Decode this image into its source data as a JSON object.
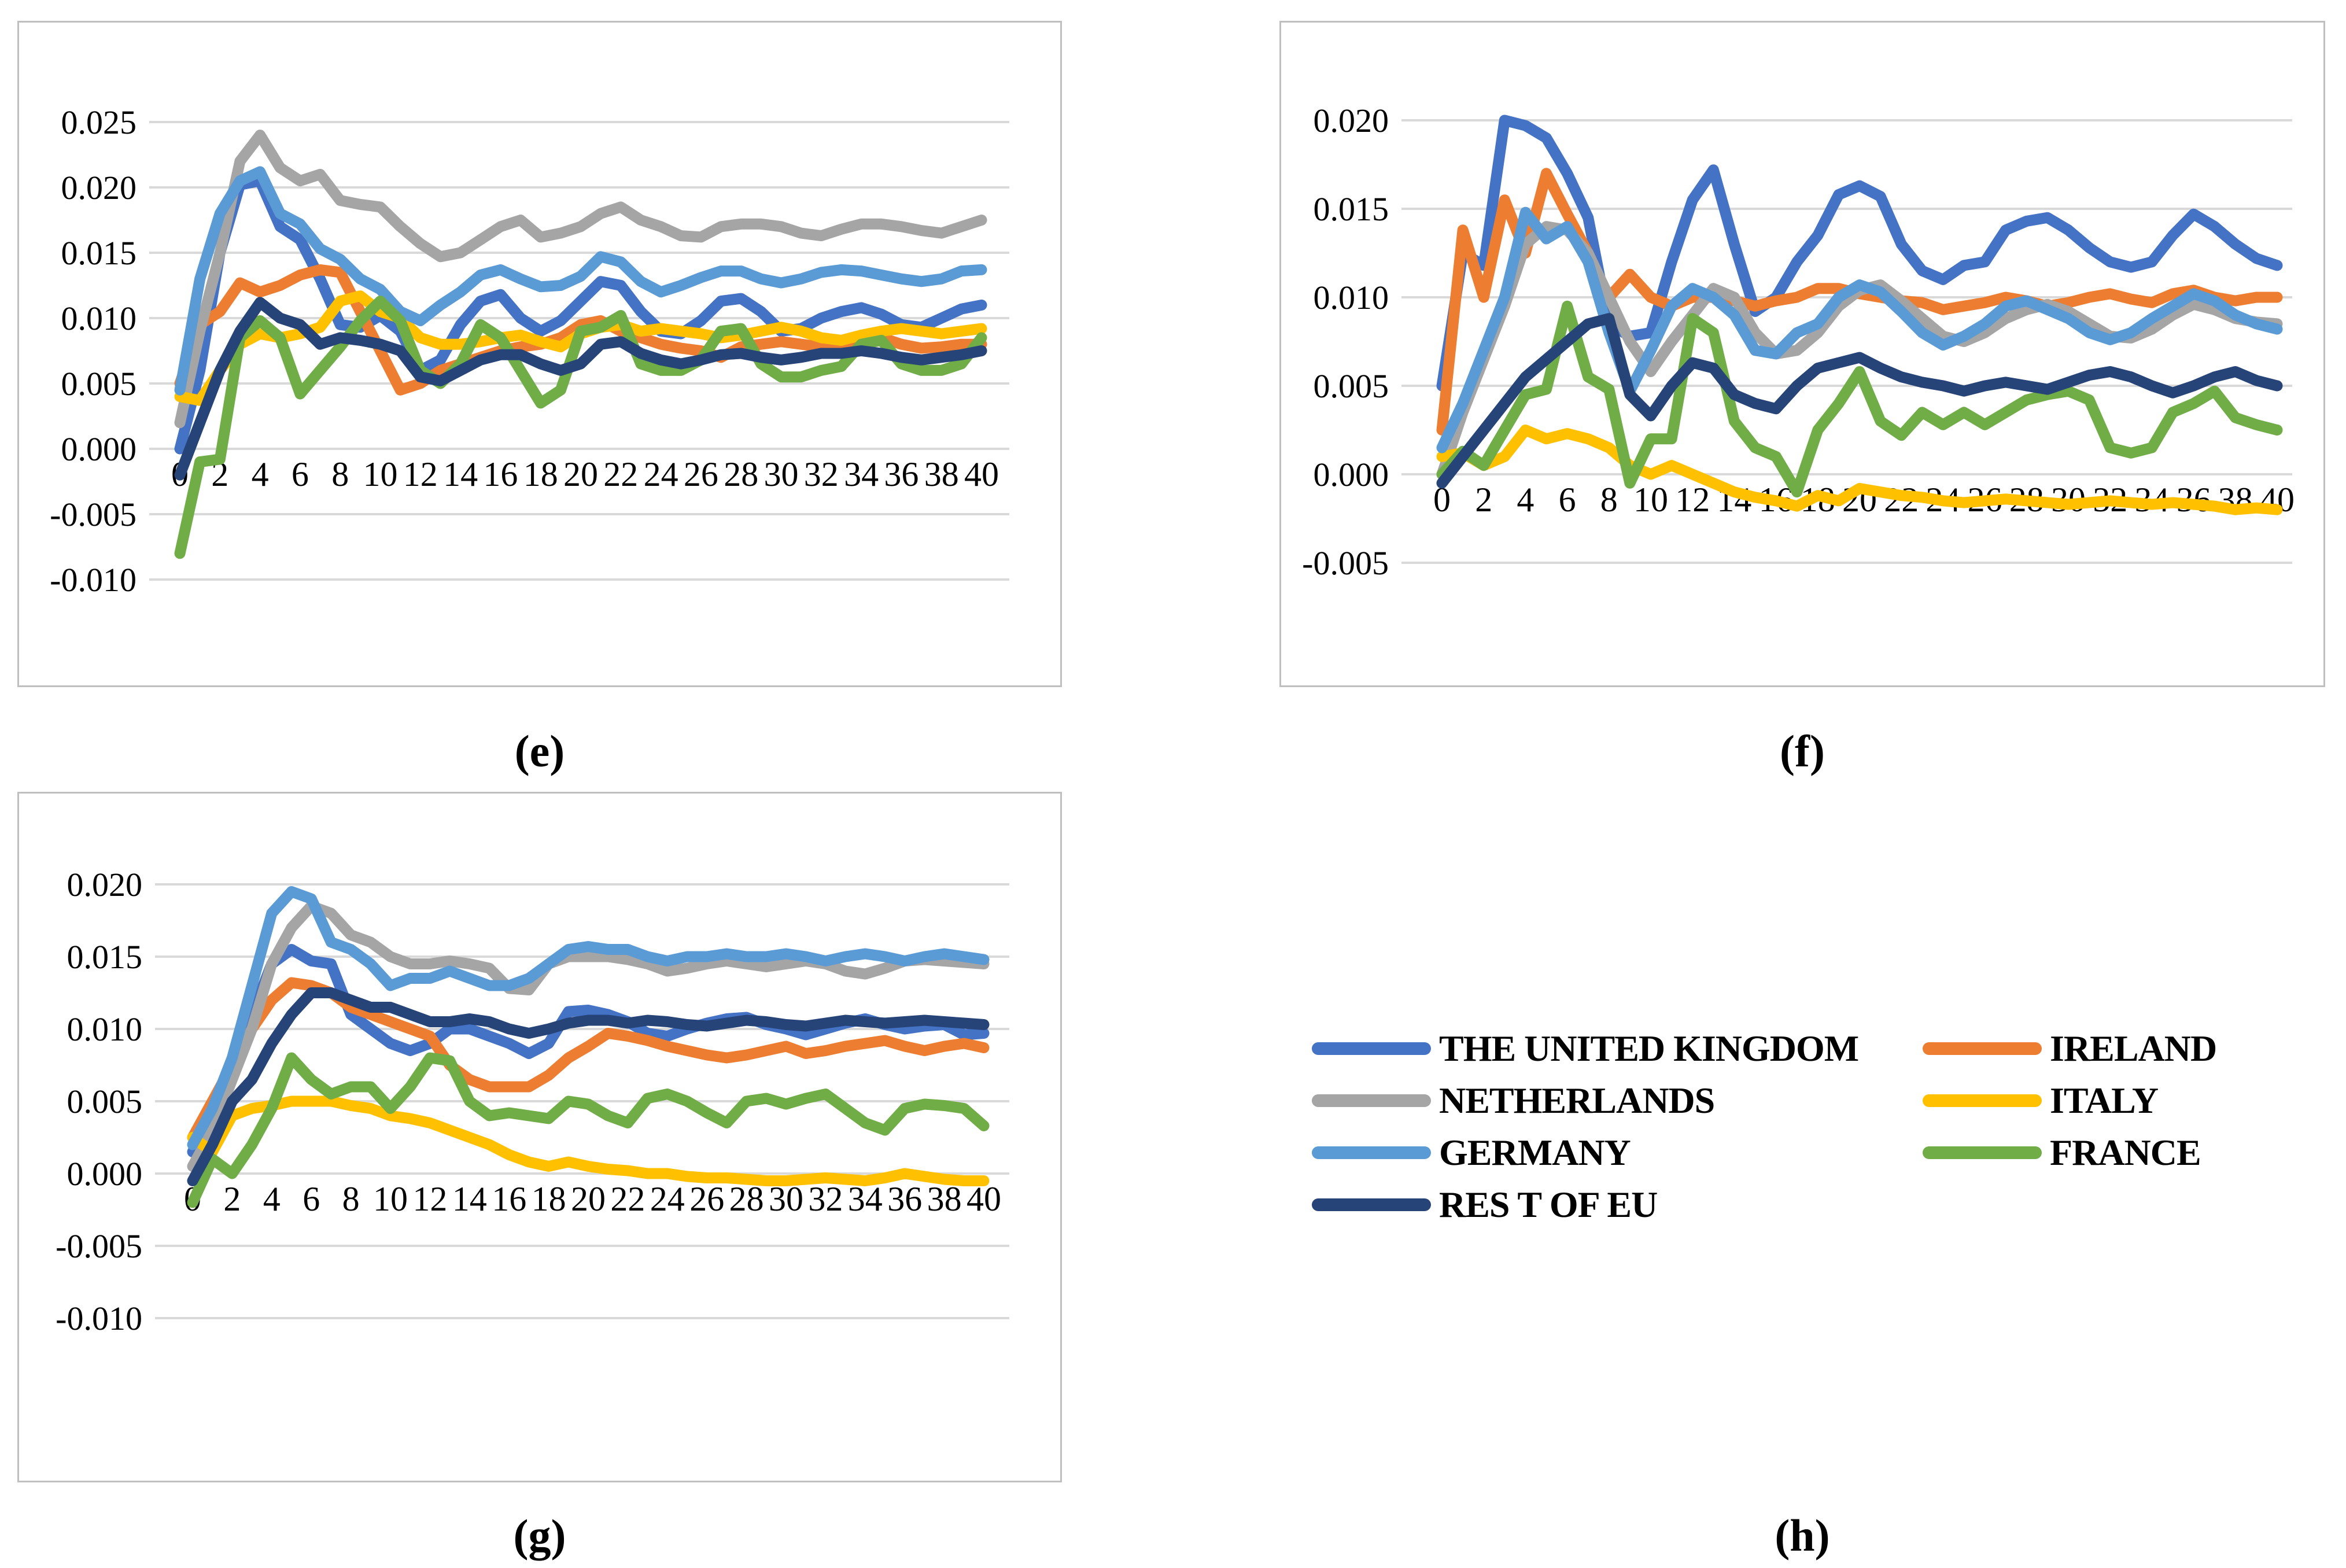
{
  "series_meta": [
    {
      "id": "uk",
      "label": "THE UNITED KINGDOM",
      "color": "#4472C4"
    },
    {
      "id": "ireland",
      "label": "IRELAND",
      "color": "#ED7D31"
    },
    {
      "id": "netherlands",
      "label": "NETHERLANDS",
      "color": "#A5A5A5"
    },
    {
      "id": "italy",
      "label": "ITALY",
      "color": "#FFC000"
    },
    {
      "id": "germany",
      "label": "GERMANY",
      "color": "#5B9BD5"
    },
    {
      "id": "france",
      "label": "FRANCE",
      "color": "#70AD47"
    },
    {
      "id": "resteu",
      "label": "RES T OF EU",
      "color": "#264478"
    }
  ],
  "legend": {
    "caption": "(h)",
    "rows": [
      [
        "uk",
        "ireland"
      ],
      [
        "netherlands",
        "italy"
      ],
      [
        "germany",
        "france"
      ],
      [
        "resteu"
      ]
    ]
  },
  "styles": {
    "gridline_color": "#d9d9d9",
    "panel_border_color": "#bfbfbf",
    "line_width": 19
  },
  "chart_data": [
    {
      "id": "e",
      "caption": "(e)",
      "type": "line",
      "x_range": [
        0,
        40
      ],
      "x_interval": 1,
      "xticks": [
        0,
        2,
        4,
        6,
        8,
        10,
        12,
        14,
        16,
        18,
        20,
        22,
        24,
        26,
        28,
        30,
        32,
        34,
        36,
        38,
        40
      ],
      "yticks": [
        0.025,
        0.02,
        0.015,
        0.01,
        0.005,
        0.0,
        -0.005,
        -0.01
      ],
      "ylim": [
        -0.01,
        0.025
      ],
      "grid": true,
      "series": {
        "uk": [
          0.0,
          0.006,
          0.015,
          0.0202,
          0.0205,
          0.017,
          0.016,
          0.013,
          0.0095,
          0.0093,
          0.0102,
          0.009,
          0.006,
          0.0068,
          0.0095,
          0.0113,
          0.0118,
          0.01,
          0.009,
          0.0098,
          0.0113,
          0.0128,
          0.0125,
          0.0105,
          0.009,
          0.0088,
          0.0098,
          0.0113,
          0.0115,
          0.0105,
          0.009,
          0.0092,
          0.01,
          0.0105,
          0.0108,
          0.0103,
          0.0095,
          0.0093,
          0.01,
          0.0107,
          0.011
        ],
        "ireland": [
          0.005,
          0.0095,
          0.0105,
          0.0127,
          0.012,
          0.0125,
          0.0133,
          0.0137,
          0.0135,
          0.0105,
          0.0075,
          0.0045,
          0.005,
          0.006,
          0.0065,
          0.007,
          0.0075,
          0.0078,
          0.008,
          0.0085,
          0.0095,
          0.0098,
          0.009,
          0.0085,
          0.008,
          0.0077,
          0.0075,
          0.007,
          0.0078,
          0.008,
          0.0082,
          0.008,
          0.0078,
          0.008,
          0.0082,
          0.0085,
          0.008,
          0.0077,
          0.0078,
          0.008,
          0.008
        ],
        "netherlands": [
          0.002,
          0.009,
          0.015,
          0.022,
          0.024,
          0.0215,
          0.0205,
          0.021,
          0.019,
          0.0187,
          0.0185,
          0.017,
          0.0157,
          0.0147,
          0.015,
          0.016,
          0.017,
          0.0175,
          0.0162,
          0.0165,
          0.017,
          0.018,
          0.0185,
          0.0175,
          0.017,
          0.0163,
          0.0162,
          0.017,
          0.0172,
          0.0172,
          0.017,
          0.0165,
          0.0163,
          0.0168,
          0.0172,
          0.0172,
          0.017,
          0.0167,
          0.0165,
          0.017,
          0.0175
        ],
        "italy": [
          0.004,
          0.0037,
          0.006,
          0.008,
          0.0088,
          0.0085,
          0.0088,
          0.0093,
          0.0113,
          0.0117,
          0.0105,
          0.01,
          0.0085,
          0.008,
          0.008,
          0.0082,
          0.0085,
          0.0087,
          0.0082,
          0.0078,
          0.0088,
          0.0093,
          0.0095,
          0.009,
          0.0092,
          0.009,
          0.0088,
          0.0085,
          0.0087,
          0.009,
          0.0093,
          0.009,
          0.0085,
          0.0083,
          0.0087,
          0.009,
          0.0092,
          0.009,
          0.0088,
          0.009,
          0.0092
        ],
        "germany": [
          0.0045,
          0.013,
          0.018,
          0.0205,
          0.0212,
          0.018,
          0.0172,
          0.0153,
          0.0145,
          0.013,
          0.0122,
          0.0105,
          0.0098,
          0.011,
          0.012,
          0.0133,
          0.0137,
          0.013,
          0.0124,
          0.0125,
          0.0132,
          0.0147,
          0.0143,
          0.0128,
          0.012,
          0.0125,
          0.0131,
          0.0136,
          0.0136,
          0.013,
          0.0127,
          0.013,
          0.0135,
          0.0137,
          0.0136,
          0.0133,
          0.013,
          0.0128,
          0.013,
          0.0136,
          0.0137
        ],
        "france": [
          -0.008,
          -0.001,
          -0.0008,
          0.0085,
          0.0098,
          0.0085,
          0.0042,
          0.006,
          0.0078,
          0.0098,
          0.0113,
          0.0098,
          0.006,
          0.005,
          0.0065,
          0.0095,
          0.0085,
          0.006,
          0.0035,
          0.0045,
          0.009,
          0.0093,
          0.0102,
          0.0065,
          0.006,
          0.006,
          0.0068,
          0.009,
          0.0092,
          0.0065,
          0.0055,
          0.0055,
          0.006,
          0.0063,
          0.008,
          0.0083,
          0.0065,
          0.006,
          0.006,
          0.0065,
          0.0085
        ],
        "resteu": [
          -0.002,
          0.002,
          0.006,
          0.009,
          0.0112,
          0.01,
          0.0095,
          0.008,
          0.0085,
          0.0083,
          0.008,
          0.0075,
          0.0055,
          0.0052,
          0.006,
          0.0068,
          0.0072,
          0.0072,
          0.0065,
          0.006,
          0.0065,
          0.008,
          0.0082,
          0.0073,
          0.0068,
          0.0065,
          0.0068,
          0.0072,
          0.0073,
          0.007,
          0.0068,
          0.007,
          0.0073,
          0.0073,
          0.0075,
          0.0073,
          0.007,
          0.0068,
          0.007,
          0.0072,
          0.0075
        ]
      }
    },
    {
      "id": "f",
      "caption": "(f)",
      "type": "line",
      "x_range": [
        0,
        40
      ],
      "x_interval": 1,
      "xticks": [
        0,
        2,
        4,
        6,
        8,
        10,
        12,
        14,
        16,
        18,
        20,
        22,
        24,
        26,
        28,
        30,
        32,
        34,
        36,
        38,
        40
      ],
      "yticks": [
        0.02,
        0.015,
        0.01,
        0.005,
        0.0,
        -0.005
      ],
      "ylim": [
        -0.005,
        0.02
      ],
      "grid": true,
      "series": {
        "uk": [
          0.005,
          0.0125,
          0.0118,
          0.02,
          0.0197,
          0.019,
          0.017,
          0.0145,
          0.0085,
          0.0078,
          0.008,
          0.012,
          0.0155,
          0.0172,
          0.013,
          0.0092,
          0.01,
          0.012,
          0.0135,
          0.0158,
          0.0163,
          0.0157,
          0.013,
          0.0115,
          0.011,
          0.0118,
          0.012,
          0.0138,
          0.0143,
          0.0145,
          0.0138,
          0.0128,
          0.012,
          0.0117,
          0.012,
          0.0135,
          0.0147,
          0.014,
          0.013,
          0.0122,
          0.0118
        ],
        "ireland": [
          0.0025,
          0.0138,
          0.01,
          0.0155,
          0.0125,
          0.017,
          0.0147,
          0.0125,
          0.01,
          0.0113,
          0.01,
          0.0095,
          0.01,
          0.01,
          0.0098,
          0.0095,
          0.0098,
          0.01,
          0.0105,
          0.0105,
          0.0102,
          0.01,
          0.0098,
          0.0097,
          0.0093,
          0.0095,
          0.0097,
          0.01,
          0.0098,
          0.0095,
          0.0097,
          0.01,
          0.0102,
          0.0099,
          0.0097,
          0.0102,
          0.0104,
          0.01,
          0.0098,
          0.01,
          0.01
        ],
        "netherlands": [
          0.0,
          0.0035,
          0.0065,
          0.0095,
          0.013,
          0.014,
          0.0138,
          0.0125,
          0.01,
          0.0075,
          0.0058,
          0.0075,
          0.009,
          0.0105,
          0.01,
          0.008,
          0.0068,
          0.007,
          0.008,
          0.0095,
          0.0104,
          0.0107,
          0.0098,
          0.0088,
          0.0078,
          0.0075,
          0.008,
          0.0088,
          0.0093,
          0.0096,
          0.0092,
          0.0085,
          0.0078,
          0.0077,
          0.0082,
          0.009,
          0.0096,
          0.0093,
          0.0088,
          0.0086,
          0.0085
        ],
        "italy": [
          0.001,
          0.0012,
          0.0005,
          0.001,
          0.0025,
          0.002,
          0.0023,
          0.002,
          0.0015,
          0.0005,
          0.0,
          0.0005,
          0.0,
          -0.0005,
          -0.001,
          -0.0013,
          -0.0015,
          -0.0018,
          -0.0012,
          -0.0015,
          -0.0008,
          -0.001,
          -0.0012,
          -0.0013,
          -0.0015,
          -0.0016,
          -0.0015,
          -0.0014,
          -0.0015,
          -0.0016,
          -0.0017,
          -0.0016,
          -0.0015,
          -0.0016,
          -0.0017,
          -0.0016,
          -0.0017,
          -0.0018,
          -0.002,
          -0.0019,
          -0.002
        ],
        "germany": [
          0.0015,
          0.004,
          0.007,
          0.01,
          0.0148,
          0.0133,
          0.014,
          0.012,
          0.008,
          0.0047,
          0.007,
          0.0095,
          0.0105,
          0.01,
          0.009,
          0.007,
          0.0068,
          0.008,
          0.0085,
          0.01,
          0.0107,
          0.0103,
          0.0092,
          0.008,
          0.0073,
          0.0078,
          0.0085,
          0.0095,
          0.0098,
          0.0093,
          0.0088,
          0.008,
          0.0076,
          0.008,
          0.0088,
          0.0095,
          0.0102,
          0.0098,
          0.009,
          0.0085,
          0.0082
        ],
        "france": [
          0.0,
          0.0013,
          0.0005,
          0.0025,
          0.0045,
          0.0048,
          0.0095,
          0.0055,
          0.0048,
          -0.0005,
          0.002,
          0.002,
          0.0088,
          0.008,
          0.003,
          0.0015,
          0.001,
          -0.001,
          0.0025,
          0.004,
          0.0058,
          0.003,
          0.0022,
          0.0035,
          0.0028,
          0.0035,
          0.0028,
          0.0035,
          0.0042,
          0.0045,
          0.0047,
          0.0042,
          0.0015,
          0.0012,
          0.0015,
          0.0035,
          0.004,
          0.0047,
          0.0032,
          0.0028,
          0.0025
        ],
        "resteu": [
          -0.0005,
          0.001,
          0.0025,
          0.004,
          0.0055,
          0.0065,
          0.0075,
          0.0085,
          0.0088,
          0.0045,
          0.0033,
          0.005,
          0.0063,
          0.006,
          0.0045,
          0.004,
          0.0037,
          0.005,
          0.006,
          0.0063,
          0.0066,
          0.006,
          0.0055,
          0.0052,
          0.005,
          0.0047,
          0.005,
          0.0052,
          0.005,
          0.0048,
          0.0052,
          0.0056,
          0.0058,
          0.0055,
          0.005,
          0.0046,
          0.005,
          0.0055,
          0.0058,
          0.0053,
          0.005
        ]
      }
    },
    {
      "id": "g",
      "caption": "(g)",
      "type": "line",
      "x_range": [
        0,
        40
      ],
      "x_interval": 1,
      "xticks": [
        0,
        2,
        4,
        6,
        8,
        10,
        12,
        14,
        16,
        18,
        20,
        22,
        24,
        26,
        28,
        30,
        32,
        34,
        36,
        38,
        40
      ],
      "yticks": [
        0.02,
        0.015,
        0.01,
        0.005,
        0.0,
        -0.005,
        -0.01
      ],
      "ylim": [
        -0.01,
        0.02
      ],
      "grid": true,
      "series": {
        "uk": [
          0.0015,
          0.004,
          0.0075,
          0.011,
          0.0145,
          0.0155,
          0.0147,
          0.0145,
          0.011,
          0.01,
          0.009,
          0.0085,
          0.009,
          0.01,
          0.01,
          0.0095,
          0.009,
          0.0083,
          0.009,
          0.0112,
          0.0113,
          0.011,
          0.0105,
          0.0097,
          0.0095,
          0.01,
          0.0104,
          0.0107,
          0.0108,
          0.0103,
          0.01,
          0.0096,
          0.01,
          0.0104,
          0.0107,
          0.0103,
          0.01,
          0.0102,
          0.0103,
          0.0096,
          0.0097
        ],
        "ireland": [
          0.0025,
          0.005,
          0.0075,
          0.01,
          0.012,
          0.0132,
          0.013,
          0.0125,
          0.0115,
          0.011,
          0.0105,
          0.01,
          0.0095,
          0.0075,
          0.0065,
          0.006,
          0.006,
          0.006,
          0.0068,
          0.008,
          0.0088,
          0.0097,
          0.0095,
          0.0092,
          0.0088,
          0.0085,
          0.0082,
          0.008,
          0.0082,
          0.0085,
          0.0088,
          0.0083,
          0.0085,
          0.0088,
          0.009,
          0.0092,
          0.0088,
          0.0085,
          0.0088,
          0.009,
          0.0087
        ],
        "netherlands": [
          0.0005,
          0.003,
          0.0065,
          0.01,
          0.0145,
          0.017,
          0.0185,
          0.018,
          0.0165,
          0.016,
          0.015,
          0.0145,
          0.0145,
          0.0147,
          0.0145,
          0.0142,
          0.0128,
          0.0127,
          0.0145,
          0.015,
          0.015,
          0.015,
          0.0148,
          0.0145,
          0.014,
          0.0142,
          0.0145,
          0.0147,
          0.0145,
          0.0143,
          0.0145,
          0.0147,
          0.0145,
          0.014,
          0.0138,
          0.0142,
          0.0147,
          0.0148,
          0.0147,
          0.0146,
          0.0145
        ],
        "italy": [
          0.0025,
          0.0015,
          0.004,
          0.0045,
          0.0047,
          0.005,
          0.005,
          0.005,
          0.0047,
          0.0045,
          0.004,
          0.0038,
          0.0035,
          0.003,
          0.0025,
          0.002,
          0.0013,
          0.0008,
          0.0005,
          0.0008,
          0.0005,
          0.0003,
          0.0002,
          0.0,
          0.0,
          -0.0002,
          -0.0003,
          -0.0003,
          -0.0004,
          -0.0005,
          -0.0005,
          -0.0004,
          -0.0003,
          -0.0004,
          -0.0005,
          -0.0003,
          0.0,
          -0.0002,
          -0.0004,
          -0.0005,
          -0.0005
        ],
        "germany": [
          0.002,
          0.0045,
          0.008,
          0.013,
          0.018,
          0.0195,
          0.019,
          0.016,
          0.0155,
          0.0145,
          0.013,
          0.0135,
          0.0135,
          0.014,
          0.0135,
          0.013,
          0.013,
          0.0135,
          0.0145,
          0.0155,
          0.0157,
          0.0155,
          0.0155,
          0.015,
          0.0147,
          0.015,
          0.015,
          0.0152,
          0.015,
          0.015,
          0.0152,
          0.015,
          0.0147,
          0.015,
          0.0152,
          0.015,
          0.0147,
          0.015,
          0.0152,
          0.015,
          0.0148
        ],
        "france": [
          -0.002,
          0.001,
          0.0,
          0.002,
          0.0045,
          0.008,
          0.0065,
          0.0055,
          0.006,
          0.006,
          0.0045,
          0.006,
          0.008,
          0.0078,
          0.005,
          0.004,
          0.0042,
          0.004,
          0.0038,
          0.005,
          0.0048,
          0.004,
          0.0035,
          0.0052,
          0.0055,
          0.005,
          0.0042,
          0.0035,
          0.005,
          0.0052,
          0.0048,
          0.0052,
          0.0055,
          0.0045,
          0.0035,
          0.003,
          0.0045,
          0.0048,
          0.0047,
          0.0045,
          0.0033
        ],
        "resteu": [
          -0.0005,
          0.002,
          0.005,
          0.0065,
          0.009,
          0.011,
          0.0125,
          0.0125,
          0.012,
          0.0115,
          0.0115,
          0.011,
          0.0105,
          0.0105,
          0.0107,
          0.0105,
          0.01,
          0.0097,
          0.01,
          0.0104,
          0.0106,
          0.0106,
          0.0104,
          0.0106,
          0.0105,
          0.0103,
          0.0102,
          0.0104,
          0.0106,
          0.0105,
          0.0103,
          0.0102,
          0.0104,
          0.0106,
          0.0105,
          0.0104,
          0.0105,
          0.0106,
          0.0105,
          0.0104,
          0.0103
        ]
      }
    }
  ]
}
